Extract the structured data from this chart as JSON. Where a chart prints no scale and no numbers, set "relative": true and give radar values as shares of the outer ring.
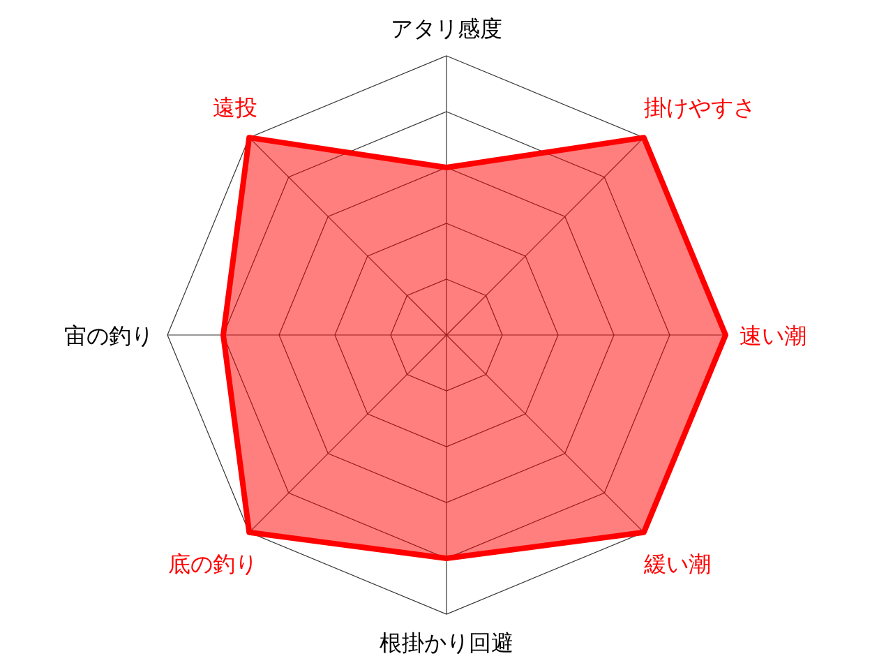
{
  "chart_data": {
    "type": "radar",
    "relative": true,
    "categories": [
      "アタリ感度",
      "掛けやすさ",
      "速い潮",
      "緩い潮",
      "根掛かり回避",
      "底の釣り",
      "宙の釣り",
      "遠投"
    ],
    "colors": [
      "#000000",
      "#ff0000",
      "#ff0000",
      "#ff0000",
      "#000000",
      "#ff0000",
      "#000000",
      "#ff0000"
    ],
    "series": [
      {
        "color": "#ff0000",
        "values": [
          0.6,
          1,
          1,
          1,
          0.8,
          1,
          0.8,
          1
        ]
      }
    ],
    "grid": true
  }
}
